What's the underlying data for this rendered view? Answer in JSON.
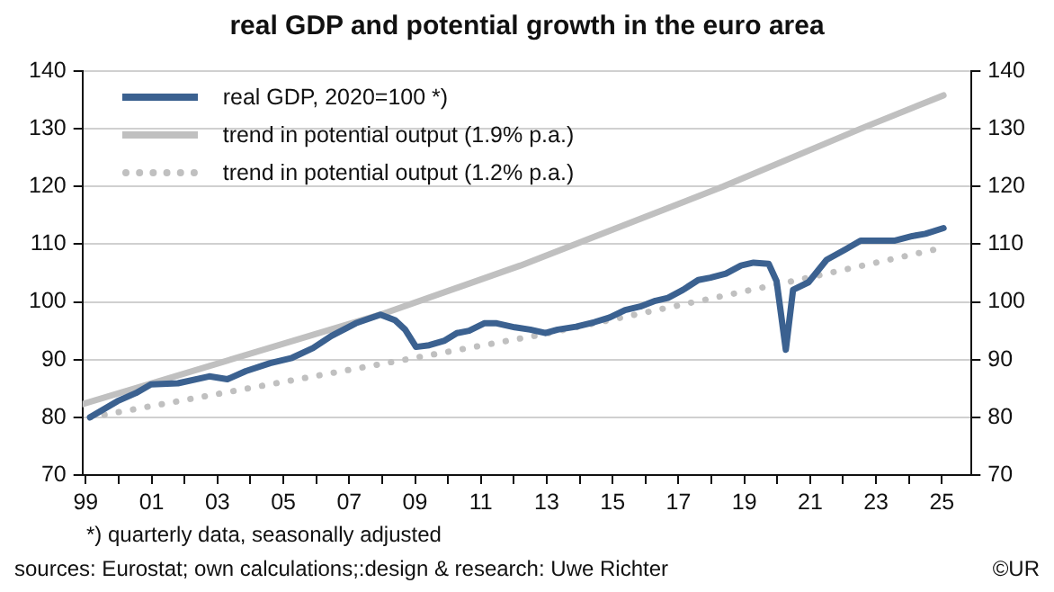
{
  "chart_data": {
    "type": "line",
    "title": "real GDP and potential growth in the euro area",
    "series": [
      {
        "name": "real GDP, 2020=100 *)",
        "color": "#3b6190",
        "line_style": "solid",
        "x": [
          1999.13,
          1999.96,
          2000.52,
          2000.98,
          2001.8,
          2002.75,
          2003.3,
          2003.86,
          2004.6,
          2005.26,
          2005.9,
          2006.46,
          2007.2,
          2007.95,
          2008.4,
          2008.7,
          2009.03,
          2009.43,
          2009.9,
          2010.27,
          2010.64,
          2011.1,
          2011.48,
          2012.03,
          2012.5,
          2012.96,
          2013.33,
          2013.89,
          2014.45,
          2014.91,
          2015.38,
          2015.84,
          2016.3,
          2016.68,
          2017.14,
          2017.6,
          2017.97,
          2018.44,
          2018.9,
          2019.28,
          2019.74,
          2019.98,
          2020.26,
          2020.48,
          2020.95,
          2021.5,
          2022.07,
          2022.53,
          2023.0,
          2023.55,
          2024.1,
          2024.5,
          2025.05
        ],
        "values": [
          80.0,
          82.8,
          84.2,
          85.7,
          85.9,
          87.1,
          86.6,
          88.0,
          89.4,
          90.3,
          92.0,
          94.1,
          96.3,
          97.8,
          96.8,
          95.2,
          92.2,
          92.5,
          93.3,
          94.6,
          95.0,
          96.3,
          96.3,
          95.6,
          95.2,
          94.6,
          95.2,
          95.7,
          96.5,
          97.3,
          98.6,
          99.2,
          100.2,
          100.7,
          102.1,
          103.8,
          104.2,
          104.9,
          106.3,
          106.8,
          106.6,
          103.6,
          91.7,
          102.1,
          103.4,
          107.3,
          109.1,
          110.6,
          110.6,
          110.6,
          111.4,
          111.8,
          112.8
        ]
      },
      {
        "name": "trend in potential output (1.9% p.a.)",
        "color": "#c0c0c0",
        "line_style": "solid",
        "x": [
          1998.9,
          2007.95,
          2012.2,
          2018.36,
          2022.53,
          2025.05
        ],
        "values": [
          82.3,
          97.8,
          106.3,
          120.0,
          130.0,
          135.8
        ]
      },
      {
        "name": "trend in potential output (1.2% p.a.)",
        "color": "#c0c0c0",
        "line_style": "dotted",
        "x": [
          1999.13,
          2012.9,
          2020.95,
          2024.8
        ],
        "values": [
          80.0,
          94.4,
          104.2,
          109.1
        ]
      }
    ],
    "xlim": [
      1998.9,
      2025.9
    ],
    "xticks": [
      {
        "value": 1999,
        "label": "99"
      },
      {
        "value": 2000,
        "label": null
      },
      {
        "value": 2001,
        "label": "01"
      },
      {
        "value": 2002,
        "label": null
      },
      {
        "value": 2003,
        "label": "03"
      },
      {
        "value": 2004,
        "label": null
      },
      {
        "value": 2005,
        "label": "05"
      },
      {
        "value": 2006,
        "label": null
      },
      {
        "value": 2007,
        "label": "07"
      },
      {
        "value": 2008,
        "label": null
      },
      {
        "value": 2009,
        "label": "09"
      },
      {
        "value": 2010,
        "label": null
      },
      {
        "value": 2011,
        "label": "11"
      },
      {
        "value": 2012,
        "label": null
      },
      {
        "value": 2013,
        "label": "13"
      },
      {
        "value": 2014,
        "label": null
      },
      {
        "value": 2015,
        "label": "15"
      },
      {
        "value": 2016,
        "label": null
      },
      {
        "value": 2017,
        "label": "17"
      },
      {
        "value": 2018,
        "label": null
      },
      {
        "value": 2019,
        "label": "19"
      },
      {
        "value": 2020,
        "label": null
      },
      {
        "value": 2021,
        "label": "21"
      },
      {
        "value": 2022,
        "label": null
      },
      {
        "value": 2023,
        "label": "23"
      },
      {
        "value": 2024,
        "label": null
      },
      {
        "value": 2025,
        "label": "25"
      }
    ],
    "ylim": [
      70,
      140
    ],
    "yticks": [
      70,
      80,
      90,
      100,
      110,
      120,
      130,
      140
    ],
    "y2lim": [
      70,
      140
    ],
    "y2ticks": [
      70,
      80,
      90,
      100,
      110,
      120,
      130,
      140
    ],
    "grid": "y",
    "legend": "top left",
    "marker": "none",
    "annotations": [
      "*) quarterly data, seasonally adjusted",
      "sources: Eurostat; own calculations;:design & research: Uwe Richter",
      "©UR"
    ]
  }
}
